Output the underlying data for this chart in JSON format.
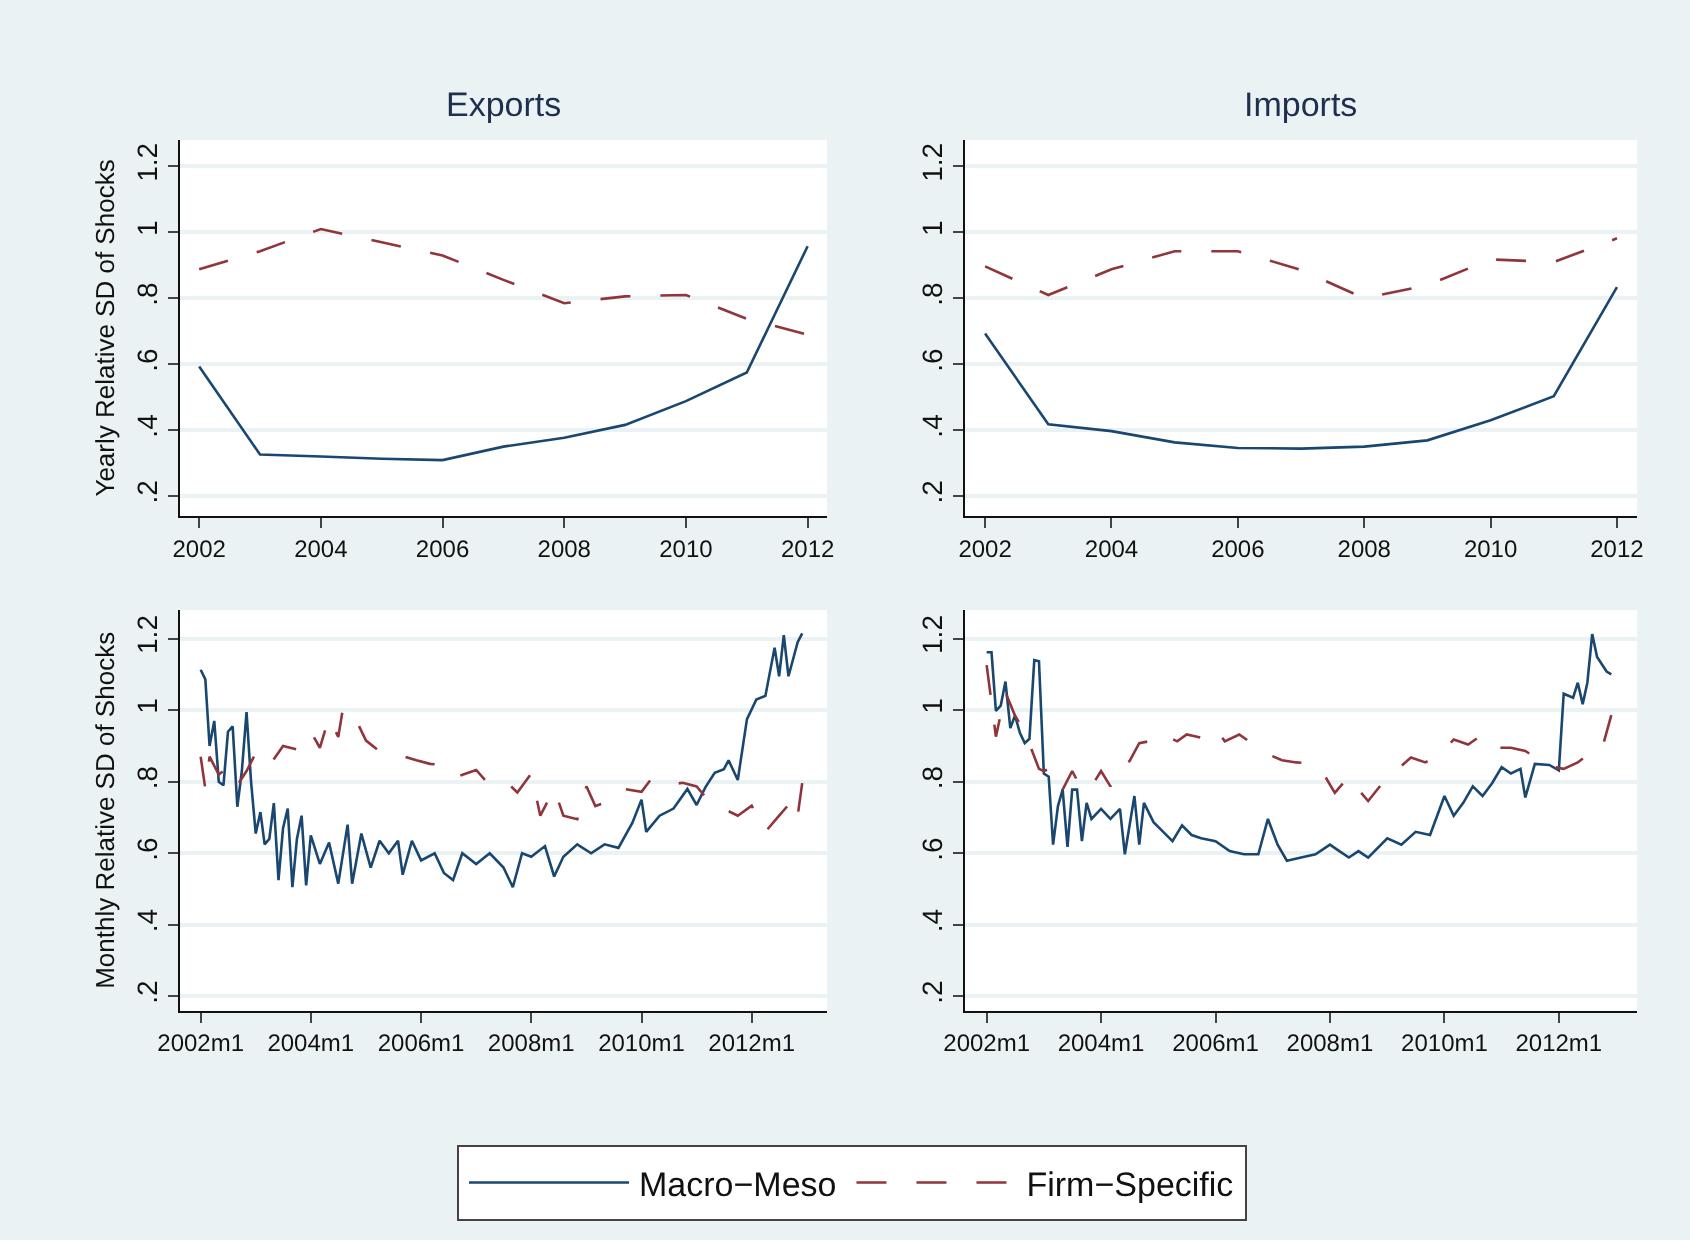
{
  "chart_data": [
    {
      "type": "line",
      "title": "Exports",
      "ylabel": "Yearly Relative SD of Shocks",
      "x": [
        2002,
        2003,
        2004,
        2005,
        2006,
        2007,
        2008,
        2009,
        2010,
        2011,
        2012
      ],
      "series": [
        {
          "name": "Macro−Meso",
          "color": "#1a476f",
          "line_style": "solid",
          "values": [
            0.593,
            0.326,
            0.32,
            0.313,
            0.309,
            0.35,
            0.377,
            0.416,
            0.488,
            0.575,
            0.958
          ]
        },
        {
          "name": "Firm−Specific",
          "color": "#90353b",
          "line_style": "dashed",
          "values": [
            0.888,
            0.943,
            1.01,
            0.97,
            0.93,
            0.856,
            0.785,
            0.806,
            0.81,
            0.738,
            0.69
          ]
        }
      ],
      "xlim": [
        2001.68,
        2012.32
      ],
      "xticks": [
        2002,
        2004,
        2006,
        2008,
        2010,
        2012
      ],
      "ylim": [
        0.14,
        1.28
      ],
      "yticks": [
        {
          "value": 0.2,
          "label": ".2"
        },
        {
          "value": 0.4,
          "label": ".4"
        },
        {
          "value": 0.6,
          "label": ".6"
        },
        {
          "value": 0.8,
          "label": ".8"
        },
        1,
        1.2
      ],
      "grid": "y",
      "legend": "bottom"
    },
    {
      "type": "line",
      "title": "Imports",
      "x": [
        2002,
        2003,
        2004,
        2005,
        2006,
        2007,
        2008,
        2009,
        2010,
        2011,
        2012
      ],
      "series": [
        {
          "color": "#1a476f",
          "line_style": "solid",
          "values": [
            0.693,
            0.418,
            0.397,
            0.363,
            0.346,
            0.344,
            0.35,
            0.369,
            0.43,
            0.503,
            0.834
          ]
        },
        {
          "color": "#90353b",
          "line_style": "dashed",
          "values": [
            0.897,
            0.81,
            0.888,
            0.943,
            0.943,
            0.886,
            0.8,
            0.84,
            0.918,
            0.91,
            0.982
          ]
        }
      ],
      "xlim": [
        2001.68,
        2012.32
      ],
      "xticks": [
        2002,
        2004,
        2006,
        2008,
        2010,
        2012
      ],
      "ylim": [
        0.14,
        1.28
      ],
      "yticks": [
        {
          "value": 0.2,
          "label": ".2"
        },
        {
          "value": 0.4,
          "label": ".4"
        },
        {
          "value": 0.6,
          "label": ".6"
        },
        {
          "value": 0.8,
          "label": ".8"
        },
        1,
        1.2
      ],
      "grid": "y"
    },
    {
      "type": "line",
      "ylabel": "Monthly Relative SD of Shocks",
      "series": [
        {
          "color": "#1a476f",
          "line_style": "solid",
          "x": [
            "2002-01",
            "2002-02",
            "2002-03",
            "2002-04",
            "2002-05",
            "2002-06",
            "2002-07",
            "2002-08",
            "2002-09",
            "2002-10",
            "2002-11",
            "2002-12",
            "2003-01",
            "2003-02",
            "2003-03",
            "2003-04",
            "2003-05",
            "2003-06",
            "2003-07",
            "2003-08",
            "2003-09",
            "2003-10",
            "2003-11",
            "2003-12",
            "2004-01",
            "2004-03",
            "2004-05",
            "2004-07",
            "2004-09",
            "2004-10",
            "2004-12",
            "2005-02",
            "2005-04",
            "2005-06",
            "2005-08",
            "2005-09",
            "2005-11",
            "2006-01",
            "2006-04",
            "2006-06",
            "2006-08",
            "2006-10",
            "2007-01",
            "2007-04",
            "2007-07",
            "2007-09",
            "2007-11",
            "2008-01",
            "2008-04",
            "2008-06",
            "2008-08",
            "2008-11",
            "2009-02",
            "2009-05",
            "2009-08",
            "2009-11",
            "2010-01",
            "2010-02",
            "2010-05",
            "2010-08",
            "2010-11",
            "2011-01",
            "2011-03",
            "2011-05",
            "2011-07",
            "2011-08",
            "2011-10",
            "2011-12",
            "2012-02",
            "2012-04",
            "2012-06",
            "2012-07",
            "2012-08",
            "2012-09",
            "2012-11",
            "2012-12"
          ],
          "values": [
            1.113,
            1.086,
            0.9,
            0.97,
            0.8,
            0.79,
            0.94,
            0.955,
            0.73,
            0.83,
            0.995,
            0.8,
            0.655,
            0.715,
            0.625,
            0.64,
            0.74,
            0.525,
            0.67,
            0.725,
            0.505,
            0.64,
            0.705,
            0.51,
            0.65,
            0.57,
            0.63,
            0.515,
            0.68,
            0.515,
            0.655,
            0.56,
            0.635,
            0.6,
            0.635,
            0.54,
            0.635,
            0.58,
            0.6,
            0.545,
            0.525,
            0.6,
            0.57,
            0.6,
            0.56,
            0.505,
            0.6,
            0.59,
            0.62,
            0.535,
            0.59,
            0.625,
            0.6,
            0.625,
            0.615,
            0.685,
            0.75,
            0.66,
            0.705,
            0.725,
            0.78,
            0.735,
            0.785,
            0.825,
            0.835,
            0.86,
            0.805,
            0.975,
            1.03,
            1.04,
            1.175,
            1.095,
            1.21,
            1.095,
            1.19,
            1.215
          ]
        },
        {
          "color": "#90353b",
          "line_style": "dashed",
          "x": [
            "2002-01",
            "2002-02",
            "2002-03",
            "2002-05",
            "2002-07",
            "2002-09",
            "2002-11",
            "2003-01",
            "2003-04",
            "2003-07",
            "2003-10",
            "2004-01",
            "2004-03",
            "2004-05",
            "2004-07",
            "2004-08",
            "2004-10",
            "2005-01",
            "2005-04",
            "2005-08",
            "2005-12",
            "2006-03",
            "2006-06",
            "2006-09",
            "2007-01",
            "2007-04",
            "2007-08",
            "2007-10",
            "2008-01",
            "2008-03",
            "2008-06",
            "2008-08",
            "2008-11",
            "2009-01",
            "2009-03",
            "2009-06",
            "2009-09",
            "2010-01",
            "2010-03",
            "2010-06",
            "2010-10",
            "2011-01",
            "2011-04",
            "2011-07",
            "2011-10",
            "2012-01",
            "2012-04",
            "2012-07",
            "2012-10",
            "2012-11",
            "2012-12"
          ],
          "values": [
            0.87,
            0.78,
            0.87,
            0.82,
            0.84,
            0.79,
            0.83,
            0.88,
            0.845,
            0.9,
            0.89,
            0.94,
            0.895,
            0.98,
            0.925,
            1.005,
            0.995,
            0.915,
            0.885,
            0.875,
            0.86,
            0.85,
            0.847,
            0.815,
            0.833,
            0.79,
            0.795,
            0.77,
            0.823,
            0.705,
            0.78,
            0.705,
            0.695,
            0.787,
            0.732,
            0.745,
            0.78,
            0.772,
            0.805,
            0.79,
            0.797,
            0.787,
            0.742,
            0.724,
            0.705,
            0.733,
            0.66,
            0.705,
            0.75,
            0.705,
            0.796
          ]
        }
      ],
      "xlim": [
        "2001-08-15",
        "2013-05-15"
      ],
      "xticks": [
        {
          "value": "2002-01",
          "label": "2002m1"
        },
        {
          "value": "2004-01",
          "label": "2004m1"
        },
        {
          "value": "2006-01",
          "label": "2006m1"
        },
        {
          "value": "2008-01",
          "label": "2008m1"
        },
        {
          "value": "2010-01",
          "label": "2010m1"
        },
        {
          "value": "2012-01",
          "label": "2012m1"
        }
      ],
      "ylim": [
        0.16,
        1.28
      ],
      "yticks": [
        {
          "value": 0.2,
          "label": ".2"
        },
        {
          "value": 0.4,
          "label": ".4"
        },
        {
          "value": 0.6,
          "label": ".6"
        },
        {
          "value": 0.8,
          "label": ".8"
        },
        1,
        1.2
      ],
      "grid": "y"
    },
    {
      "type": "line",
      "series": [
        {
          "color": "#1a476f",
          "line_style": "solid",
          "x": [
            "2002-01",
            "2002-02",
            "2002-03",
            "2002-04",
            "2002-05",
            "2002-06",
            "2002-07",
            "2002-08",
            "2002-09",
            "2002-10",
            "2002-11",
            "2002-12",
            "2003-01",
            "2003-02",
            "2003-03",
            "2003-04",
            "2003-05",
            "2003-06",
            "2003-07",
            "2003-08",
            "2003-09",
            "2003-10",
            "2003-11",
            "2004-01",
            "2004-03",
            "2004-05",
            "2004-06",
            "2004-08",
            "2004-09",
            "2004-10",
            "2004-12",
            "2005-02",
            "2005-04",
            "2005-06",
            "2005-08",
            "2005-10",
            "2006-01",
            "2006-04",
            "2006-07",
            "2006-10",
            "2006-12",
            "2007-02",
            "2007-04",
            "2007-07",
            "2007-10",
            "2008-01",
            "2008-03",
            "2008-05",
            "2008-07",
            "2008-09",
            "2009-01",
            "2009-04",
            "2009-07",
            "2009-10",
            "2010-01",
            "2010-03",
            "2010-05",
            "2010-07",
            "2010-09",
            "2010-11",
            "2011-01",
            "2011-03",
            "2011-05",
            "2011-06",
            "2011-08",
            "2011-11",
            "2012-01",
            "2012-02",
            "2012-04",
            "2012-05",
            "2012-06",
            "2012-07",
            "2012-08",
            "2012-09",
            "2012-11",
            "2012-12"
          ],
          "values": [
            1.162,
            1.162,
            0.998,
            1.013,
            1.08,
            0.95,
            0.985,
            0.937,
            0.908,
            0.92,
            1.14,
            1.137,
            0.823,
            0.814,
            0.624,
            0.732,
            0.778,
            0.618,
            0.778,
            0.778,
            0.634,
            0.741,
            0.696,
            0.724,
            0.696,
            0.724,
            0.597,
            0.76,
            0.624,
            0.741,
            0.687,
            0.66,
            0.634,
            0.678,
            0.651,
            0.642,
            0.634,
            0.606,
            0.597,
            0.597,
            0.696,
            0.624,
            0.579,
            0.588,
            0.597,
            0.624,
            0.606,
            0.588,
            0.606,
            0.588,
            0.642,
            0.624,
            0.66,
            0.651,
            0.76,
            0.705,
            0.741,
            0.787,
            0.76,
            0.796,
            0.841,
            0.823,
            0.836,
            0.756,
            0.85,
            0.847,
            0.832,
            1.046,
            1.035,
            1.077,
            1.017,
            1.077,
            1.213,
            1.149,
            1.108,
            1.1
          ]
        },
        {
          "color": "#90353b",
          "line_style": "dashed",
          "x": [
            "2002-01",
            "2002-03",
            "2002-05",
            "2002-07",
            "2002-09",
            "2002-12",
            "2003-01",
            "2003-03",
            "2003-05",
            "2003-07",
            "2003-09",
            "2003-11",
            "2004-01",
            "2004-03",
            "2004-05",
            "2004-07",
            "2004-09",
            "2004-11",
            "2005-01",
            "2005-03",
            "2005-05",
            "2005-07",
            "2005-10",
            "2006-01",
            "2006-03",
            "2006-06",
            "2006-09",
            "2006-12",
            "2007-03",
            "2007-06",
            "2007-09",
            "2007-12",
            "2008-02",
            "2008-05",
            "2008-07",
            "2008-09",
            "2008-12",
            "2009-03",
            "2009-06",
            "2009-09",
            "2009-12",
            "2010-03",
            "2010-06",
            "2010-09",
            "2010-12",
            "2011-03",
            "2011-06",
            "2011-09",
            "2011-12",
            "2012-02",
            "2012-05",
            "2012-08",
            "2012-10",
            "2012-12"
          ],
          "values": [
            1.126,
            0.926,
            1.05,
            0.985,
            0.94,
            0.836,
            0.83,
            0.84,
            0.778,
            0.83,
            0.778,
            0.787,
            0.83,
            0.787,
            0.84,
            0.858,
            0.908,
            0.913,
            0.904,
            0.926,
            0.913,
            0.932,
            0.923,
            0.95,
            0.913,
            0.932,
            0.904,
            0.877,
            0.86,
            0.854,
            0.851,
            0.815,
            0.769,
            0.815,
            0.778,
            0.746,
            0.796,
            0.832,
            0.868,
            0.854,
            0.877,
            0.918,
            0.904,
            0.932,
            0.895,
            0.895,
            0.886,
            0.86,
            0.841,
            0.836,
            0.854,
            0.886,
            0.89,
            0.986
          ]
        }
      ],
      "xlim": [
        "2001-08-15",
        "2013-05-15"
      ],
      "xticks": [
        {
          "value": "2002-01",
          "label": "2002m1"
        },
        {
          "value": "2004-01",
          "label": "2004m1"
        },
        {
          "value": "2006-01",
          "label": "2006m1"
        },
        {
          "value": "2008-01",
          "label": "2008m1"
        },
        {
          "value": "2010-01",
          "label": "2010m1"
        },
        {
          "value": "2012-01",
          "label": "2012m1"
        }
      ],
      "ylim": [
        0.16,
        1.28
      ],
      "yticks": [
        {
          "value": 0.2,
          "label": ".2"
        },
        {
          "value": 0.4,
          "label": ".4"
        },
        {
          "value": 0.6,
          "label": ".6"
        },
        {
          "value": 0.8,
          "label": ".8"
        },
        1,
        1.2
      ],
      "grid": "y"
    }
  ]
}
